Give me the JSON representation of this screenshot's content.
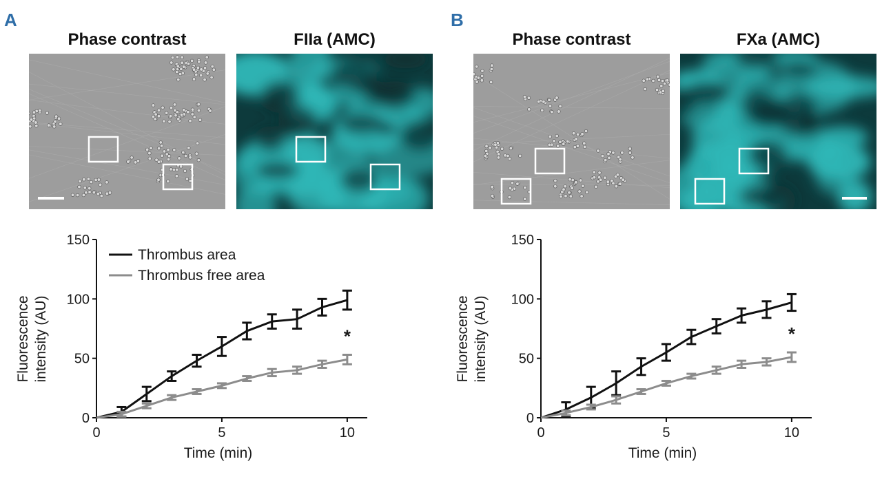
{
  "figure": {
    "panels": [
      {
        "letter": "A",
        "accent": "#2f6ea8",
        "images": [
          {
            "title": "Phase contrast",
            "kind": "phase"
          },
          {
            "title": "FIIa (AMC)",
            "kind": "fluor"
          }
        ]
      },
      {
        "letter": "B",
        "accent": "#2f6ea8",
        "images": [
          {
            "title": "Phase contrast",
            "kind": "phase"
          },
          {
            "title": "FXa (AMC)",
            "kind": "fluor"
          }
        ]
      }
    ]
  },
  "colors": {
    "thrombus": "#111111",
    "free": "#8c8c8c",
    "fluor": "#2fb8b8",
    "phase": "#9a9a9a"
  },
  "chart_data": [
    {
      "type": "line",
      "title": "",
      "xlabel": "Time (min)",
      "ylabel": "Fluorescence intensity (AU)",
      "ylabel_lines": [
        "Fluorescence",
        "intensity (AU)"
      ],
      "xlim": [
        0,
        10.8
      ],
      "ylim": [
        0,
        150
      ],
      "xticks": [
        0,
        5,
        10
      ],
      "yticks": [
        0,
        50,
        100,
        150
      ],
      "legend": "top-left",
      "annotation": "*",
      "x": [
        0,
        1,
        2,
        3,
        4,
        5,
        6,
        7,
        8,
        9,
        10
      ],
      "series": [
        {
          "name": "Thrombus area",
          "color": "#111111",
          "values": [
            0,
            5,
            20,
            35,
            48,
            60,
            73,
            81,
            83,
            93,
            99
          ],
          "errors": [
            0,
            4,
            6,
            4,
            5,
            8,
            7,
            6,
            8,
            7,
            8
          ]
        },
        {
          "name": "Thrombus free area",
          "color": "#8c8c8c",
          "values": [
            0,
            3,
            10,
            17,
            22,
            27,
            33,
            38,
            40,
            45,
            49
          ],
          "errors": [
            0,
            2,
            2,
            2,
            2,
            2,
            2,
            3,
            3,
            3,
            4
          ]
        }
      ]
    },
    {
      "type": "line",
      "title": "",
      "xlabel": "Time (min)",
      "ylabel": "Fluorescence intensity (AU)",
      "ylabel_lines": [
        "Fluorescence",
        "intensity (AU)"
      ],
      "xlim": [
        0,
        10.8
      ],
      "ylim": [
        0,
        150
      ],
      "xticks": [
        0,
        5,
        10
      ],
      "yticks": [
        0,
        50,
        100,
        150
      ],
      "legend": "none",
      "annotation": "*",
      "x": [
        0,
        1,
        2,
        3,
        4,
        5,
        6,
        7,
        8,
        9,
        10
      ],
      "series": [
        {
          "name": "Thrombus area",
          "color": "#111111",
          "values": [
            0,
            7,
            17,
            29,
            43,
            55,
            68,
            77,
            86,
            91,
            97
          ],
          "errors": [
            0,
            6,
            9,
            10,
            7,
            7,
            6,
            6,
            6,
            7,
            7
          ]
        },
        {
          "name": "Thrombus free area",
          "color": "#8c8c8c",
          "values": [
            0,
            4,
            9,
            15,
            22,
            29,
            35,
            40,
            45,
            47,
            51
          ],
          "errors": [
            0,
            2,
            2,
            3,
            2,
            2,
            2,
            3,
            3,
            3,
            4
          ]
        }
      ]
    }
  ]
}
